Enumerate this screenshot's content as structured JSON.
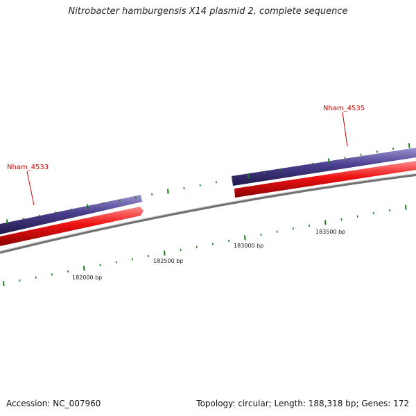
{
  "title": "Nitrobacter hamburgensis X14 plasmid 2, complete sequence",
  "accession": "Accession: NC_007960",
  "summary": "Topology: circular; Length: 188,318 bp; Genes: 172",
  "genes": [
    {
      "name": "Nham_4533",
      "color": "#cc0000"
    },
    {
      "name": "Nham_4535",
      "color": "#cc0000"
    }
  ],
  "scale_labels": [
    "182000 bp",
    "182500 bp",
    "183000 bp",
    "183500 bp"
  ],
  "colors": {
    "forward_feature": "#4a3f8f",
    "reverse_feature": "#ee1111",
    "backbone": "#8a8a8a",
    "ticks": "#1a7a1a"
  }
}
